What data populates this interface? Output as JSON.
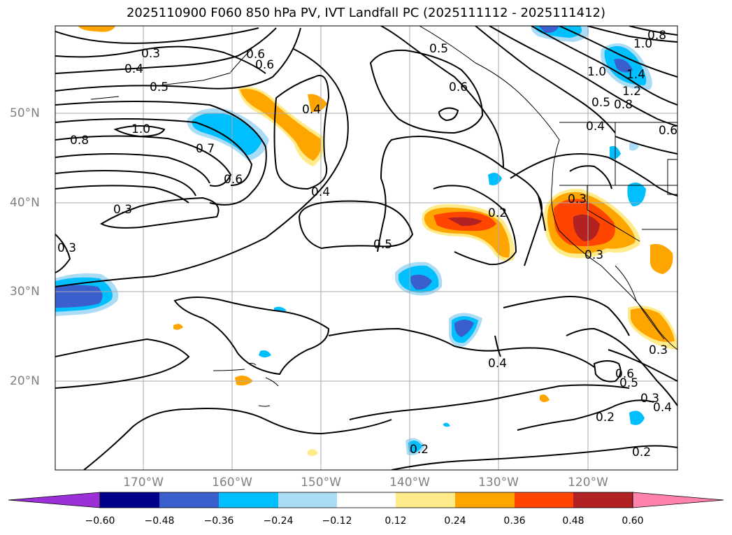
{
  "title": "2025110900 F060 850 hPa PV, IVT Landfall PC (2025111112 - 2025111412)",
  "lat_labels": [
    "50°N",
    "40°N",
    "30°N",
    "20°N"
  ],
  "lon_labels": [
    "170°W",
    "160°W",
    "150°W",
    "140°W",
    "130°W",
    "120°W"
  ],
  "contour_labels": [
    "0.3",
    "0.4",
    "0.5",
    "1.0",
    "0.8",
    "0.7",
    "0.6",
    "0.3",
    "0.6",
    "0.4",
    "0.6",
    "0.5",
    "0.4",
    "0.5",
    "0.3",
    "0.2",
    "0.4",
    "0.6",
    "0.5",
    "0.3",
    "0.4",
    "0.2",
    "0.2",
    "0.2",
    "1.0",
    "0.8",
    "1.4",
    "1.2",
    "1.0",
    "0.5",
    "0.8",
    "0.4",
    "0.6",
    "0.3",
    "0.3",
    "0.6",
    "0.3"
  ],
  "colorbar": {
    "ticks": [
      "−0.60",
      "−0.48",
      "−0.36",
      "−0.24",
      "−0.12",
      "0.12",
      "0.24",
      "0.36",
      "0.48",
      "0.60"
    ],
    "colors": [
      "#9b30d9",
      "#00008b",
      "#3a5fcd",
      "#00bfff",
      "#aadcf5",
      "#ffffff",
      "#ffeb8a",
      "#ffa500",
      "#ff4500",
      "#b22222",
      "#ff82ab"
    ]
  }
}
